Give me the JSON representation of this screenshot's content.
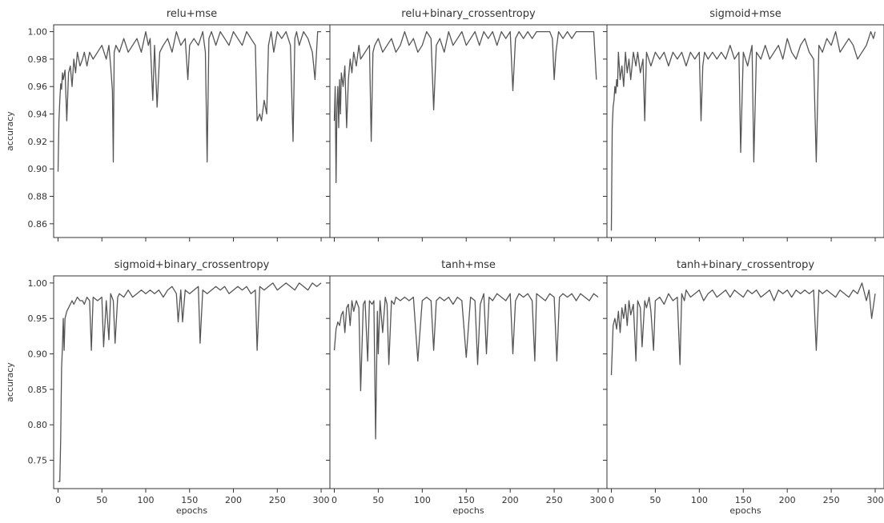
{
  "chart_data": [
    {
      "type": "line",
      "title": "relu+mse",
      "xlabel": "",
      "ylabel": "accuracy",
      "xlim": [
        -5,
        310
      ],
      "ylim": [
        0.85,
        1.005
      ],
      "xticks": [
        0,
        50,
        100,
        150,
        200,
        250,
        300
      ],
      "xtick_labels": [],
      "yticks": [
        0.86,
        0.88,
        0.9,
        0.92,
        0.94,
        0.96,
        0.98,
        1.0
      ],
      "ytick_labels": [
        "0.86",
        "0.88",
        "0.90",
        "0.92",
        "0.94",
        "0.96",
        "0.98",
        "1.00"
      ],
      "grid": false,
      "color": "#555555",
      "x": [
        0,
        1,
        2,
        3,
        4,
        5,
        6,
        8,
        10,
        12,
        14,
        16,
        18,
        20,
        22,
        25,
        28,
        30,
        33,
        36,
        40,
        45,
        50,
        55,
        58,
        60,
        62,
        63,
        64,
        66,
        70,
        75,
        80,
        85,
        90,
        95,
        100,
        103,
        105,
        108,
        110,
        113,
        116,
        120,
        125,
        130,
        135,
        140,
        145,
        148,
        150,
        155,
        160,
        165,
        168,
        170,
        172,
        175,
        180,
        185,
        190,
        195,
        200,
        205,
        210,
        215,
        220,
        225,
        227,
        230,
        232,
        235,
        238,
        240,
        243,
        246,
        250,
        255,
        260,
        265,
        268,
        270,
        272,
        275,
        280,
        285,
        290,
        293,
        296,
        300
      ],
      "y": [
        0.898,
        0.935,
        0.95,
        0.962,
        0.958,
        0.97,
        0.965,
        0.972,
        0.935,
        0.97,
        0.975,
        0.96,
        0.98,
        0.97,
        0.985,
        0.975,
        0.98,
        0.985,
        0.975,
        0.985,
        0.98,
        0.985,
        0.99,
        0.98,
        0.99,
        0.975,
        0.957,
        0.905,
        0.985,
        0.99,
        0.985,
        0.995,
        0.985,
        0.99,
        0.995,
        0.985,
        1.0,
        0.99,
        0.995,
        0.95,
        0.99,
        0.945,
        0.985,
        0.99,
        0.995,
        0.985,
        1.0,
        0.99,
        0.995,
        0.965,
        0.99,
        0.995,
        0.99,
        1.0,
        0.985,
        0.905,
        0.995,
        1.0,
        0.99,
        1.0,
        0.995,
        0.99,
        1.0,
        0.995,
        0.99,
        1.0,
        0.995,
        0.99,
        0.935,
        0.94,
        0.935,
        0.95,
        0.94,
        0.99,
        1.0,
        0.985,
        1.0,
        0.995,
        1.0,
        0.99,
        0.92,
        0.995,
        1.0,
        0.99,
        1.0,
        0.995,
        0.985,
        0.965,
        1.0,
        1.0
      ]
    },
    {
      "type": "line",
      "title": "relu+binary_crossentropy",
      "xlabel": "",
      "ylabel": "",
      "xlim": [
        -5,
        310
      ],
      "ylim": [
        0.85,
        1.005
      ],
      "xticks": [
        0,
        50,
        100,
        150,
        200,
        250,
        300
      ],
      "xtick_labels": [],
      "yticks": [
        0.86,
        0.88,
        0.9,
        0.92,
        0.94,
        0.96,
        0.98,
        1.0
      ],
      "ytick_labels": [],
      "grid": false,
      "color": "#555555",
      "x": [
        0,
        1,
        2,
        3,
        4,
        5,
        6,
        7,
        8,
        10,
        12,
        14,
        16,
        18,
        20,
        22,
        25,
        28,
        30,
        35,
        40,
        42,
        44,
        46,
        50,
        55,
        60,
        65,
        70,
        75,
        80,
        85,
        90,
        95,
        100,
        105,
        110,
        113,
        116,
        120,
        125,
        130,
        135,
        140,
        145,
        150,
        155,
        160,
        165,
        170,
        175,
        180,
        185,
        190,
        195,
        200,
        203,
        206,
        210,
        215,
        220,
        225,
        230,
        235,
        240,
        245,
        248,
        250,
        252,
        255,
        260,
        265,
        270,
        275,
        280,
        285,
        290,
        295,
        298
      ],
      "y": [
        0.935,
        0.96,
        0.89,
        0.945,
        0.96,
        0.93,
        0.965,
        0.94,
        0.97,
        0.96,
        0.975,
        0.93,
        0.965,
        0.98,
        0.97,
        0.985,
        0.975,
        0.99,
        0.98,
        0.985,
        0.99,
        0.92,
        0.985,
        0.99,
        0.995,
        0.985,
        0.99,
        0.995,
        0.985,
        0.99,
        1.0,
        0.99,
        0.995,
        0.985,
        0.99,
        1.0,
        0.995,
        0.943,
        0.99,
        0.995,
        0.985,
        1.0,
        0.99,
        0.995,
        1.0,
        0.99,
        0.995,
        1.0,
        0.99,
        1.0,
        0.995,
        1.0,
        0.99,
        1.0,
        0.995,
        1.0,
        0.957,
        0.995,
        1.0,
        0.995,
        1.0,
        0.995,
        1.0,
        1.0,
        1.0,
        1.0,
        0.995,
        0.965,
        0.985,
        1.0,
        0.995,
        1.0,
        0.995,
        1.0,
        1.0,
        1.0,
        1.0,
        1.0,
        0.965
      ]
    },
    {
      "type": "line",
      "title": "sigmoid+mse",
      "xlabel": "",
      "ylabel": "",
      "xlim": [
        -5,
        310
      ],
      "ylim": [
        0.85,
        1.005
      ],
      "xticks": [
        0,
        50,
        100,
        150,
        200,
        250,
        300
      ],
      "xtick_labels": [],
      "yticks": [
        0.86,
        0.88,
        0.9,
        0.92,
        0.94,
        0.96,
        0.98,
        1.0
      ],
      "ytick_labels": [],
      "grid": false,
      "color": "#555555",
      "x": [
        0,
        1,
        2,
        3,
        4,
        5,
        6,
        7,
        8,
        10,
        12,
        14,
        16,
        18,
        20,
        22,
        25,
        28,
        30,
        33,
        36,
        38,
        40,
        45,
        50,
        55,
        60,
        65,
        70,
        75,
        80,
        85,
        90,
        95,
        100,
        102,
        104,
        106,
        110,
        115,
        120,
        125,
        130,
        135,
        140,
        145,
        147,
        150,
        155,
        160,
        162,
        165,
        170,
        175,
        180,
        185,
        190,
        195,
        200,
        205,
        210,
        215,
        220,
        225,
        230,
        233,
        236,
        240,
        245,
        250,
        255,
        260,
        265,
        270,
        275,
        280,
        285,
        290,
        295,
        298,
        300
      ],
      "y": [
        0.855,
        0.93,
        0.945,
        0.95,
        0.96,
        0.955,
        0.965,
        0.96,
        0.985,
        0.965,
        0.975,
        0.96,
        0.985,
        0.97,
        0.98,
        0.965,
        0.985,
        0.975,
        0.985,
        0.97,
        0.98,
        0.935,
        0.985,
        0.975,
        0.985,
        0.98,
        0.985,
        0.975,
        0.985,
        0.98,
        0.985,
        0.975,
        0.985,
        0.98,
        0.985,
        0.935,
        0.975,
        0.985,
        0.98,
        0.985,
        0.98,
        0.985,
        0.98,
        0.99,
        0.98,
        0.985,
        0.912,
        0.985,
        0.975,
        0.99,
        0.905,
        0.985,
        0.98,
        0.99,
        0.98,
        0.985,
        0.99,
        0.98,
        0.995,
        0.985,
        0.98,
        0.99,
        0.995,
        0.985,
        0.98,
        0.905,
        0.99,
        0.985,
        0.995,
        0.99,
        1.0,
        0.985,
        0.99,
        0.995,
        0.99,
        0.98,
        0.985,
        0.99,
        1.0,
        0.995,
        1.0
      ]
    },
    {
      "type": "line",
      "title": "sigmoid+binary_crossentropy",
      "xlabel": "epochs",
      "ylabel": "accuracy",
      "xlim": [
        -5,
        310
      ],
      "ylim": [
        0.71,
        1.01
      ],
      "xticks": [
        0,
        50,
        100,
        150,
        200,
        250,
        300
      ],
      "xtick_labels": [
        "0",
        "50",
        "100",
        "150",
        "200",
        "250",
        "300"
      ],
      "yticks": [
        0.75,
        0.8,
        0.85,
        0.9,
        0.95,
        1.0
      ],
      "ytick_labels": [
        "0.75",
        "0.80",
        "0.85",
        "0.90",
        "0.95",
        "1.00"
      ],
      "grid": false,
      "color": "#555555",
      "x": [
        0,
        2,
        3,
        4,
        5,
        6,
        7,
        8,
        10,
        12,
        14,
        16,
        18,
        20,
        22,
        25,
        28,
        30,
        33,
        36,
        38,
        40,
        45,
        50,
        52,
        55,
        58,
        60,
        63,
        65,
        68,
        70,
        75,
        80,
        85,
        90,
        95,
        100,
        105,
        110,
        115,
        120,
        125,
        130,
        135,
        137,
        140,
        142,
        145,
        150,
        155,
        160,
        162,
        165,
        170,
        175,
        180,
        185,
        190,
        195,
        200,
        205,
        210,
        215,
        220,
        225,
        227,
        230,
        235,
        240,
        245,
        250,
        255,
        260,
        265,
        270,
        275,
        280,
        285,
        290,
        295,
        300
      ],
      "y": [
        0.72,
        0.72,
        0.78,
        0.88,
        0.91,
        0.95,
        0.905,
        0.95,
        0.96,
        0.965,
        0.97,
        0.975,
        0.97,
        0.975,
        0.98,
        0.975,
        0.975,
        0.97,
        0.98,
        0.975,
        0.905,
        0.98,
        0.975,
        0.98,
        0.91,
        0.975,
        0.92,
        0.985,
        0.975,
        0.915,
        0.98,
        0.985,
        0.98,
        0.99,
        0.98,
        0.985,
        0.99,
        0.985,
        0.99,
        0.985,
        0.99,
        0.98,
        0.99,
        0.995,
        0.985,
        0.945,
        0.99,
        0.945,
        0.99,
        0.985,
        0.99,
        0.995,
        0.915,
        0.99,
        0.985,
        0.99,
        0.995,
        0.99,
        0.995,
        0.985,
        0.99,
        0.995,
        0.99,
        0.995,
        0.985,
        0.99,
        0.905,
        0.995,
        0.99,
        0.995,
        1.0,
        0.99,
        0.995,
        1.0,
        0.995,
        0.99,
        1.0,
        0.995,
        0.99,
        1.0,
        0.995,
        1.0
      ]
    },
    {
      "type": "line",
      "title": "tanh+mse",
      "xlabel": "epochs",
      "ylabel": "",
      "xlim": [
        -5,
        310
      ],
      "ylim": [
        0.71,
        1.01
      ],
      "xticks": [
        0,
        50,
        100,
        150,
        200,
        250,
        300
      ],
      "xtick_labels": [
        "0",
        "50",
        "100",
        "150",
        "200",
        "250",
        "300"
      ],
      "yticks": [
        0.75,
        0.8,
        0.85,
        0.9,
        0.95,
        1.0
      ],
      "ytick_labels": [],
      "grid": false,
      "color": "#555555",
      "x": [
        0,
        2,
        4,
        6,
        8,
        10,
        12,
        14,
        16,
        18,
        20,
        22,
        25,
        28,
        30,
        33,
        35,
        38,
        40,
        43,
        45,
        47,
        49,
        50,
        52,
        55,
        58,
        60,
        62,
        65,
        68,
        70,
        75,
        80,
        85,
        90,
        95,
        100,
        105,
        110,
        113,
        116,
        120,
        125,
        130,
        135,
        140,
        145,
        150,
        155,
        160,
        163,
        166,
        170,
        173,
        176,
        180,
        185,
        190,
        195,
        200,
        203,
        206,
        210,
        215,
        220,
        225,
        228,
        230,
        235,
        240,
        245,
        250,
        253,
        256,
        260,
        265,
        270,
        275,
        280,
        285,
        290,
        295,
        300
      ],
      "y": [
        0.905,
        0.935,
        0.945,
        0.94,
        0.955,
        0.96,
        0.93,
        0.965,
        0.97,
        0.94,
        0.975,
        0.96,
        0.975,
        0.965,
        0.848,
        0.97,
        0.975,
        0.89,
        0.975,
        0.97,
        0.975,
        0.78,
        0.96,
        0.9,
        0.975,
        0.93,
        0.98,
        0.97,
        0.885,
        0.975,
        0.97,
        0.98,
        0.975,
        0.98,
        0.975,
        0.98,
        0.89,
        0.975,
        0.98,
        0.975,
        0.905,
        0.975,
        0.98,
        0.975,
        0.98,
        0.97,
        0.98,
        0.975,
        0.895,
        0.98,
        0.975,
        0.885,
        0.97,
        0.985,
        0.9,
        0.98,
        0.975,
        0.985,
        0.98,
        0.975,
        0.985,
        0.9,
        0.975,
        0.985,
        0.98,
        0.985,
        0.975,
        0.89,
        0.985,
        0.98,
        0.975,
        0.985,
        0.98,
        0.89,
        0.98,
        0.985,
        0.98,
        0.985,
        0.975,
        0.985,
        0.98,
        0.975,
        0.985,
        0.98
      ]
    },
    {
      "type": "line",
      "title": "tanh+binary_crossentropy",
      "xlabel": "epochs",
      "ylabel": "",
      "xlim": [
        -5,
        310
      ],
      "ylim": [
        0.71,
        1.01
      ],
      "xticks": [
        0,
        50,
        100,
        150,
        200,
        250,
        300
      ],
      "xtick_labels": [
        "0",
        "50",
        "100",
        "150",
        "200",
        "250",
        "300"
      ],
      "yticks": [
        0.75,
        0.8,
        0.85,
        0.9,
        0.95,
        1.0
      ],
      "ytick_labels": [],
      "grid": false,
      "color": "#555555",
      "x": [
        0,
        2,
        4,
        6,
        8,
        10,
        12,
        14,
        16,
        18,
        20,
        22,
        25,
        28,
        30,
        33,
        35,
        38,
        40,
        43,
        45,
        48,
        50,
        55,
        60,
        65,
        70,
        75,
        78,
        80,
        83,
        85,
        90,
        95,
        100,
        105,
        110,
        115,
        120,
        125,
        130,
        135,
        140,
        145,
        150,
        155,
        160,
        165,
        170,
        175,
        180,
        185,
        190,
        195,
        200,
        205,
        210,
        215,
        220,
        225,
        230,
        233,
        236,
        240,
        245,
        250,
        255,
        260,
        265,
        270,
        275,
        280,
        285,
        290,
        293,
        296,
        300
      ],
      "y": [
        0.87,
        0.94,
        0.95,
        0.935,
        0.96,
        0.93,
        0.965,
        0.95,
        0.97,
        0.94,
        0.975,
        0.955,
        0.97,
        0.89,
        0.975,
        0.965,
        0.91,
        0.975,
        0.965,
        0.98,
        0.96,
        0.905,
        0.975,
        0.98,
        0.97,
        0.985,
        0.975,
        0.98,
        0.885,
        0.985,
        0.975,
        0.99,
        0.98,
        0.985,
        0.99,
        0.975,
        0.985,
        0.99,
        0.98,
        0.985,
        0.99,
        0.98,
        0.99,
        0.985,
        0.98,
        0.99,
        0.985,
        0.99,
        0.98,
        0.985,
        0.99,
        0.975,
        0.99,
        0.985,
        0.99,
        0.98,
        0.99,
        0.985,
        0.99,
        0.985,
        0.99,
        0.905,
        0.99,
        0.985,
        0.99,
        0.985,
        0.98,
        0.99,
        0.985,
        0.98,
        0.99,
        0.985,
        1.0,
        0.975,
        0.99,
        0.95,
        0.985
      ]
    }
  ]
}
